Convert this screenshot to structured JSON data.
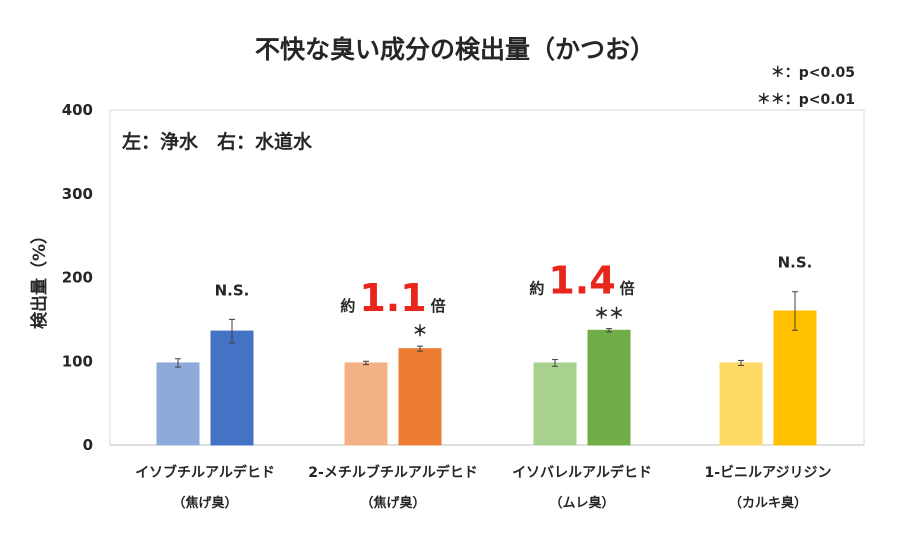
{
  "chart_data": {
    "type": "bar",
    "title": "不快な臭い成分の検出量（かつお）",
    "ylabel": "検出量（%）",
    "ylim": [
      0,
      400
    ],
    "yticks": [
      "0",
      "100",
      "200",
      "300",
      "400"
    ],
    "note": "左：浄水　右：水道水",
    "significance_legend": [
      "＊：p<0.05",
      "＊＊：p<0.01"
    ],
    "series": [
      {
        "name": "浄水",
        "position": "left"
      },
      {
        "name": "水道水",
        "position": "right"
      }
    ],
    "categories": [
      {
        "name": "イソブチルアルデヒド",
        "sub": "（焦げ臭）",
        "values": [
          98,
          136
        ],
        "errors": [
          5,
          14
        ],
        "colors": [
          "#8eaadb",
          "#4472c4"
        ],
        "annotation": {
          "type": "sig",
          "text": "N.S."
        }
      },
      {
        "name": "2-メチルブチルアルデヒド",
        "sub": "（焦げ臭）",
        "values": [
          98,
          115
        ],
        "errors": [
          2,
          3
        ],
        "colors": [
          "#f4b183",
          "#ed7d31"
        ],
        "annotation": {
          "type": "ratio",
          "prefix": "約",
          "value": "1.1",
          "suffix": "倍",
          "sig": "＊"
        }
      },
      {
        "name": "イソバレルアルデヒド",
        "sub": "（ムレ臭）",
        "values": [
          98,
          137
        ],
        "errors": [
          4,
          2
        ],
        "colors": [
          "#a9d18e",
          "#70ad47"
        ],
        "annotation": {
          "type": "ratio",
          "prefix": "約",
          "value": "1.4",
          "suffix": "倍",
          "sig": "＊＊"
        }
      },
      {
        "name": "1-ビニルアジリジン",
        "sub": "（カルキ臭）",
        "values": [
          98,
          160
        ],
        "errors": [
          3,
          23
        ],
        "colors": [
          "#ffd966",
          "#ffc000"
        ],
        "annotation": {
          "type": "sig",
          "text": "N.S."
        }
      }
    ],
    "accent_color": "#e8261c"
  }
}
